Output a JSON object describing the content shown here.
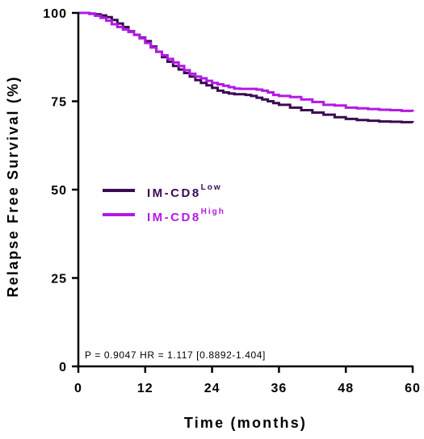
{
  "chart_data": {
    "type": "line",
    "title": "",
    "xlabel": "Time (months)",
    "ylabel": "Relapse Free Survival (%)",
    "xlim": [
      0,
      60
    ],
    "ylim": [
      0,
      100
    ],
    "xticks": [
      0,
      12,
      24,
      36,
      48,
      60
    ],
    "yticks": [
      0,
      25,
      50,
      75,
      100
    ],
    "grid": false,
    "legend_position": "middle-left",
    "annotation": "P = 0.9047 HR = 1.117 [0.8892-1.404]",
    "series": [
      {
        "name": "IM-CD8",
        "name_superscript": "Low",
        "color": "#3b0a52",
        "step": true,
        "x": [
          0,
          1,
          2,
          3,
          4,
          5,
          6,
          7,
          8,
          9,
          10,
          11,
          12,
          13,
          14,
          15,
          16,
          17,
          18,
          19,
          20,
          21,
          22,
          23,
          24,
          25,
          26,
          27,
          28,
          29,
          30,
          31,
          32,
          33,
          34,
          35,
          36,
          38,
          40,
          42,
          44,
          46,
          48,
          50,
          52,
          54,
          56,
          58,
          60
        ],
        "y": [
          100,
          100,
          99.8,
          99.6,
          99.3,
          98.8,
          98.0,
          97.0,
          96.0,
          94.8,
          93.8,
          93.0,
          92.0,
          90.5,
          89.0,
          87.5,
          86.2,
          85.0,
          84.0,
          83.0,
          82.0,
          81.0,
          80.2,
          79.5,
          78.8,
          78.0,
          77.5,
          77.2,
          77.0,
          77.0,
          76.8,
          76.5,
          76.0,
          75.5,
          75.0,
          74.5,
          74.0,
          73.2,
          72.5,
          71.8,
          71.2,
          70.5,
          70.0,
          69.7,
          69.5,
          69.3,
          69.2,
          69.1,
          69.0
        ]
      },
      {
        "name": "IM-CD8",
        "name_superscript": "High",
        "color": "#b219e6",
        "step": true,
        "x": [
          0,
          1,
          2,
          3,
          4,
          5,
          6,
          7,
          8,
          9,
          10,
          11,
          12,
          13,
          14,
          15,
          16,
          17,
          18,
          19,
          20,
          21,
          22,
          23,
          24,
          25,
          26,
          27,
          28,
          29,
          30,
          31,
          32,
          33,
          34,
          35,
          36,
          38,
          40,
          42,
          44,
          46,
          48,
          50,
          52,
          54,
          56,
          58,
          60
        ],
        "y": [
          100,
          100,
          99.7,
          99.2,
          98.6,
          97.8,
          96.8,
          96.0,
          95.3,
          94.6,
          93.8,
          92.8,
          91.5,
          90.2,
          89.0,
          88.0,
          87.0,
          86.0,
          85.0,
          83.8,
          82.8,
          82.0,
          81.5,
          80.8,
          80.2,
          79.8,
          79.4,
          79.0,
          78.6,
          78.5,
          78.5,
          78.5,
          78.3,
          78.0,
          77.5,
          76.8,
          76.5,
          76.2,
          75.5,
          74.8,
          74.0,
          73.8,
          73.2,
          73.0,
          72.8,
          72.6,
          72.5,
          72.3,
          72.1
        ]
      }
    ]
  }
}
